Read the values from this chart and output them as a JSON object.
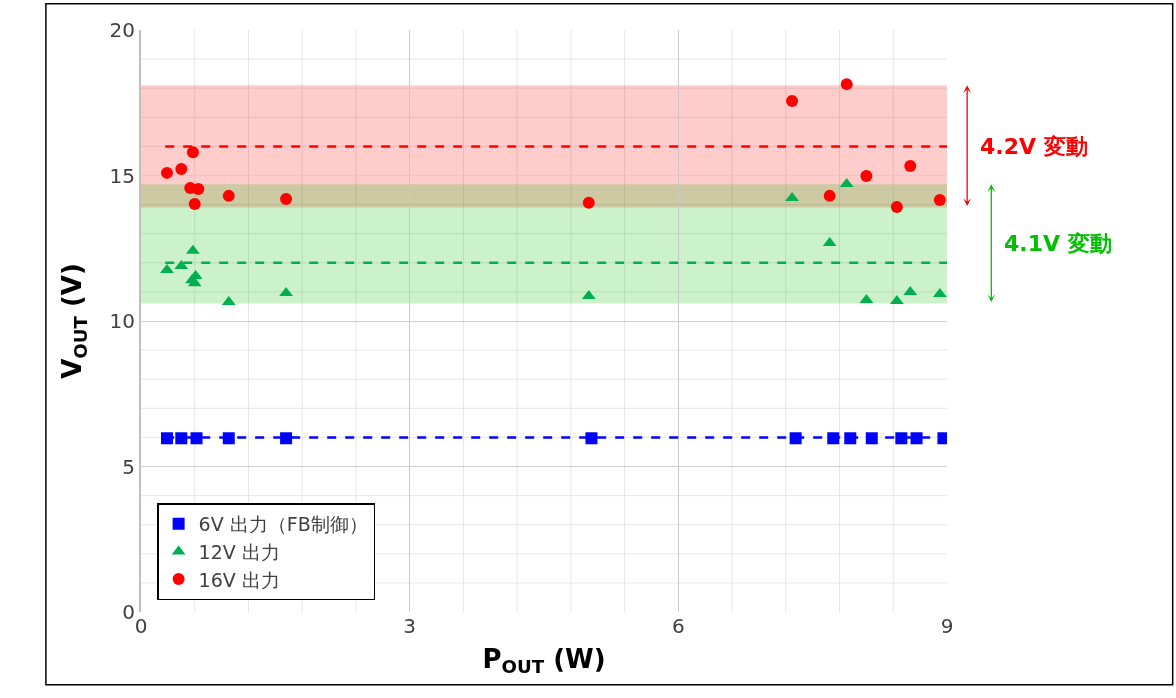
{
  "chart_data": {
    "type": "scatter",
    "xlabel": "P$_{OUT}$ (W)",
    "ylabel": "V$_{OUT}$ (V)",
    "xlim": [
      0,
      9
    ],
    "xticks": [
      0,
      3,
      6,
      9
    ],
    "ylim": [
      0,
      20
    ],
    "yticks": [
      0,
      5,
      10,
      15,
      20
    ],
    "grid": true,
    "legend": "bottom left",
    "series": [
      {
        "name": "6V 出力（FB制御）",
        "color": "#0000ff",
        "marker": "square",
        "x": [
          0.29,
          0.45,
          0.57,
          0.6,
          0.62,
          0.98,
          1.62,
          5.03,
          7.31,
          7.73,
          7.92,
          8.16,
          8.49,
          8.66,
          8.96
        ],
        "values": [
          5.97,
          5.97,
          null,
          null,
          5.97,
          5.97,
          5.97,
          5.97,
          5.97,
          5.97,
          5.97,
          5.97,
          5.97,
          5.97,
          5.97
        ]
      },
      {
        "name": "12V 出力",
        "color": "#00b050",
        "marker": "triangle",
        "x": [
          0.29,
          0.45,
          0.58,
          0.61,
          0.57,
          0.6,
          0.98,
          1.62,
          5.0,
          7.27,
          7.88,
          7.69,
          8.1,
          8.44,
          8.59,
          8.92
        ],
        "values": [
          11.75,
          11.89,
          12.41,
          11.55,
          11.4,
          11.3,
          10.65,
          10.96,
          10.86,
          14.23,
          14.71,
          12.68,
          10.72,
          10.69,
          11.0,
          10.93
        ]
      },
      {
        "name": "16V 出力",
        "color": "#ff0000",
        "marker": "circle",
        "x": [
          0.29,
          0.45,
          0.58,
          0.55,
          0.64,
          0.6,
          0.98,
          1.62,
          5.0,
          7.27,
          7.88,
          8.1,
          8.59,
          7.69,
          8.44,
          8.92
        ],
        "values": [
          15.09,
          15.22,
          15.8,
          14.57,
          14.54,
          14.02,
          14.3,
          14.19,
          14.06,
          17.56,
          18.14,
          14.98,
          15.33,
          14.3,
          13.92,
          14.16
        ]
      }
    ],
    "ref_lines": [
      {
        "axis": "y",
        "value": 16,
        "color": "#ff0000",
        "line_style": "dashed"
      },
      {
        "axis": "y",
        "value": 12,
        "color": "#00b050",
        "line_style": "dashed"
      },
      {
        "axis": "y",
        "value": 6,
        "color": "#0000ff",
        "line_style": "dashed"
      }
    ],
    "bands": [
      {
        "axis": "y",
        "from": 13.9,
        "to": 18.1,
        "label": "4.2V 変動",
        "color": "#ff0000"
      },
      {
        "axis": "y",
        "from": 10.6,
        "to": 14.7,
        "label": "4.1V 変動",
        "color": "#00c000"
      }
    ]
  }
}
